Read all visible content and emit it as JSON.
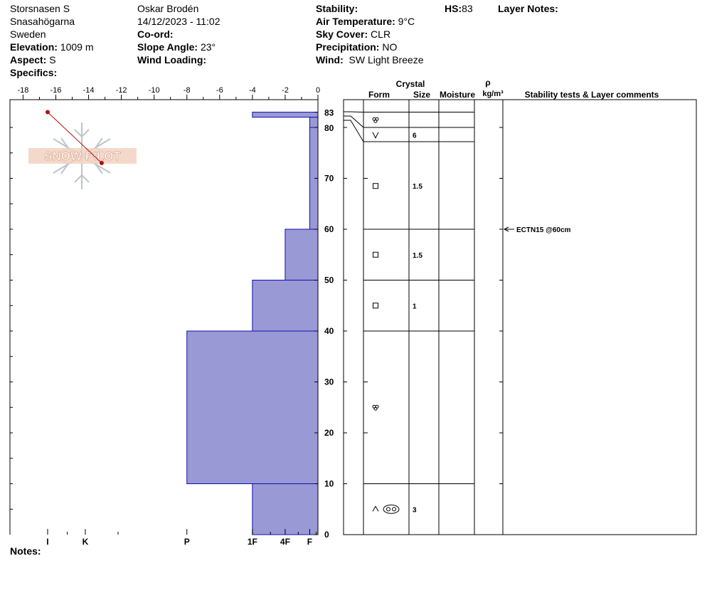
{
  "header": {
    "col1": [
      "Storsnasen S",
      "Snasahögarna",
      "Sweden"
    ],
    "elevation_label": "Elevation:",
    "elevation_value": "1009 m",
    "aspect_label": "Aspect:",
    "aspect_value": "S",
    "specifics_label": "Specifics:",
    "observer": "Oskar Brodén",
    "datetime": "14/12/2023 - 11:02",
    "coord_label": "Co-ord:",
    "slope_label": "Slope Angle:",
    "slope_value": "23°",
    "wind_loading_label": "Wind Loading:",
    "stability_label": "Stability:",
    "air_temp_label": "Air Temperature:",
    "air_temp_value": "9°C",
    "sky_label": "Sky Cover:",
    "sky_value": "CLR",
    "precip_label": "Precipitation:",
    "precip_value": "NO",
    "wind_label": "Wind:",
    "wind_value": "SW Light Breeze",
    "hs_label": "HS:",
    "hs_value": "83",
    "layer_notes_label": "Layer Notes:"
  },
  "notes_label": "Notes:",
  "watermark": "SNOW PILOT",
  "colors": {
    "hardness_fill": "#9999d6",
    "hardness_stroke": "#1010b0",
    "temp_line": "#b01010"
  },
  "chart_data": {
    "type": "area",
    "temp_axis_ticks": [
      -18,
      -16,
      -14,
      -12,
      -10,
      -8,
      -6,
      -4,
      -2,
      0
    ],
    "temp_axis_range": [
      -18.8,
      0
    ],
    "height_axis_range": [
      0,
      83
    ],
    "height_ticks": [
      0,
      10,
      20,
      30,
      40,
      50,
      60,
      70,
      80,
      83
    ],
    "hardness_ticks": [
      {
        "label": "I",
        "temp": -16.5
      },
      {
        "label": "K",
        "temp": -14.2
      },
      {
        "label": "P",
        "temp": -8
      },
      {
        "label": "1F",
        "temp": -4
      },
      {
        "label": "4F",
        "temp": -2
      },
      {
        "label": "F",
        "temp": -0.5
      }
    ],
    "layers": [
      {
        "top": 83,
        "bottom": 82,
        "hardness_temp": -4
      },
      {
        "top": 82,
        "bottom": 80,
        "hardness_temp": -0.5
      },
      {
        "top": 80,
        "bottom": 60,
        "hardness_temp": -0.5
      },
      {
        "top": 60,
        "bottom": 50,
        "hardness_temp": -2
      },
      {
        "top": 50,
        "bottom": 40,
        "hardness_temp": -4
      },
      {
        "top": 40,
        "bottom": 10,
        "hardness_temp": -8
      },
      {
        "top": 10,
        "bottom": 0,
        "hardness_temp": -4
      }
    ],
    "temp_profile": [
      {
        "temp": -16.5,
        "height": 83
      },
      {
        "temp": -13.2,
        "height": 73
      }
    ],
    "table": {
      "headers": {
        "crystal": "Crystal",
        "form": "Form",
        "size": "Size",
        "moisture": "Moisture",
        "rho": "ρ",
        "density_unit": "kg/m³",
        "comments": "Stability tests & Layer comments"
      },
      "rows": [
        {
          "top": 83,
          "bottom": 80,
          "form_center": 81.5,
          "form": "decomposing",
          "size": ""
        },
        {
          "top": 80,
          "bottom": 77.2,
          "form_center": 78.5,
          "form": "surface-hoar",
          "size": "6"
        },
        {
          "top": 77.2,
          "bottom": 60,
          "form_center": 68.5,
          "form": "faceted",
          "size": "1.5"
        },
        {
          "top": 60,
          "bottom": 50,
          "form_center": 55,
          "form": "faceted",
          "size": "1.5"
        },
        {
          "top": 50,
          "bottom": 40,
          "form_center": 45,
          "form": "faceted",
          "size": "1"
        },
        {
          "top": 40,
          "bottom": 10,
          "form_center": 25,
          "form": "decomposing",
          "size": ""
        },
        {
          "top": 10,
          "bottom": 0,
          "form_center": 5,
          "form": "depth-hoar-melt-forms",
          "size": "3"
        }
      ],
      "comments": [
        {
          "height": 60,
          "text": "ECTN15 @60cm"
        }
      ]
    }
  }
}
